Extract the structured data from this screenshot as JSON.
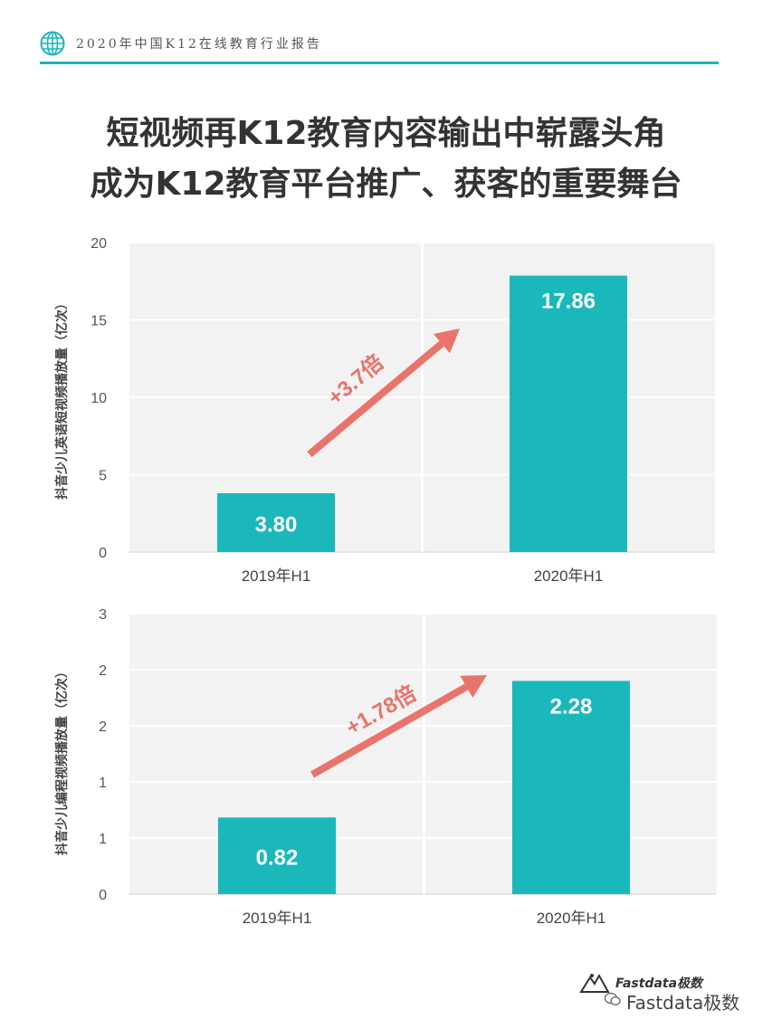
{
  "header": {
    "report_title": "2020年中国K12在线教育行业报告",
    "accent_color": "#19b6b9"
  },
  "headline": {
    "line1": "短视频再K12教育内容输出中崭露头角",
    "line2": "成为K12教育平台推广、获客的重要舞台"
  },
  "chart_data": [
    {
      "type": "bar",
      "categories": [
        "2019年H1",
        "2020年H1"
      ],
      "values": [
        3.8,
        17.86
      ],
      "value_labels": [
        "3.80",
        "17.86"
      ],
      "ylabel": "抖音少儿英语短视频播放量（亿次）",
      "ylim": [
        0,
        20
      ],
      "yticks": [
        "0",
        "5",
        "10",
        "15",
        "20"
      ],
      "annotation": "+3.7倍",
      "grid": true,
      "bar_color": "#1ab8ba",
      "arrow_color": "#e8746b"
    },
    {
      "type": "bar",
      "categories": [
        "2019年H1",
        "2020年H1"
      ],
      "values": [
        0.82,
        2.28
      ],
      "value_labels": [
        "0.82",
        "2.28"
      ],
      "ylabel": "抖音少儿编程视频播放量（亿次）",
      "ylim": [
        0,
        3
      ],
      "yticks": [
        "0",
        "1",
        "1",
        "2",
        "2",
        "3"
      ],
      "annotation": "+1.78倍",
      "grid": true,
      "bar_color": "#1ab8ba",
      "arrow_color": "#e8746b"
    }
  ],
  "watermark": {
    "brand": "Fastdata极数",
    "account": "Fastdata极数",
    "brand_icon": "mountain-logo-icon",
    "wechat_icon": "wechat-icon"
  }
}
